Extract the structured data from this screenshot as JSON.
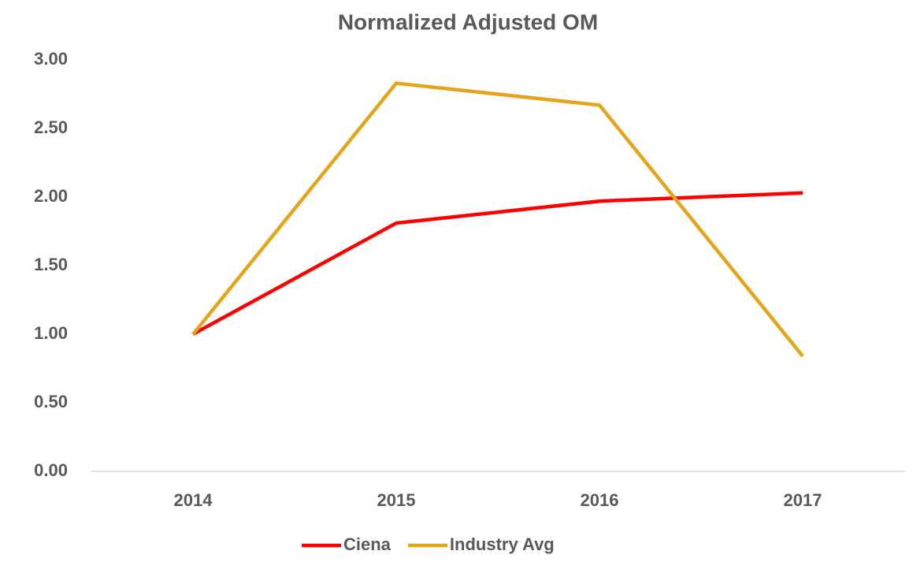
{
  "chart_data": {
    "type": "line",
    "title": "Normalized Adjusted OM",
    "categories": [
      "2014",
      "2015",
      "2016",
      "2017"
    ],
    "series": [
      {
        "name": "Ciena",
        "color": "#ff0000",
        "values": [
          1.0,
          1.81,
          1.97,
          2.03
        ]
      },
      {
        "name": "Industry Avg",
        "color": "#e5a51b",
        "values": [
          1.0,
          2.83,
          2.67,
          0.84
        ]
      }
    ],
    "ylim": [
      0,
      3
    ],
    "yticks": [
      {
        "value": 0,
        "label": "0.00"
      },
      {
        "value": 0.5,
        "label": "0.50"
      },
      {
        "value": 1,
        "label": "1.00"
      },
      {
        "value": 1.5,
        "label": "1.50"
      },
      {
        "value": 2,
        "label": "2.00"
      },
      {
        "value": 2.5,
        "label": "2.50"
      },
      {
        "value": 3,
        "label": "3.00"
      }
    ],
    "grid": false,
    "legend": "bottom"
  }
}
